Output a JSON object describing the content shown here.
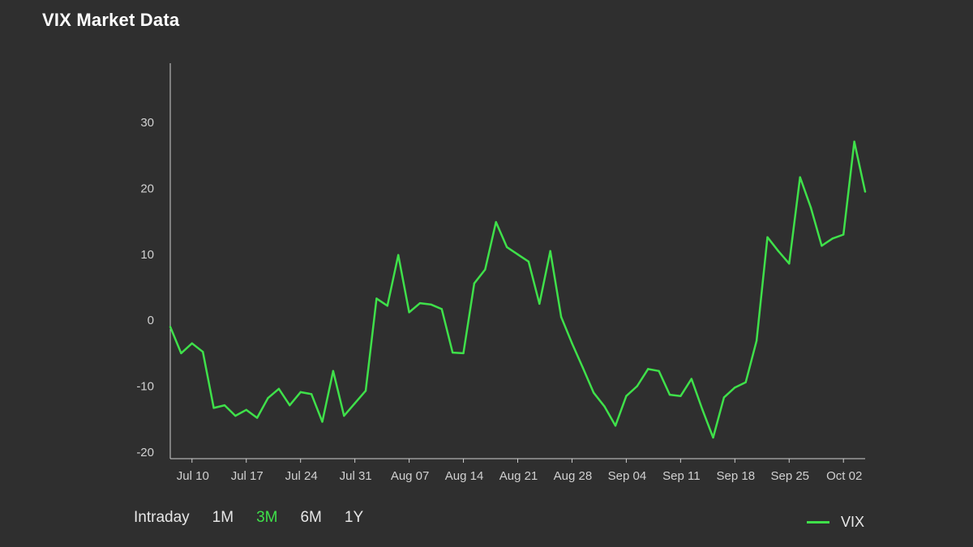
{
  "header": {
    "title": "VIX Market Data"
  },
  "range_selector": {
    "options": [
      "Intraday",
      "1M",
      "3M",
      "6M",
      "1Y"
    ],
    "selected": "3M"
  },
  "colors": {
    "series": "#3fe04a",
    "axis": "#cfcfcf",
    "background": "#2f2f2f"
  },
  "chart_data": {
    "type": "line",
    "title": "VIX Market Data",
    "xlabel": "",
    "ylabel": "",
    "ylim": [
      -21,
      39
    ],
    "yticks": [
      -20,
      -10,
      0,
      10,
      20,
      30
    ],
    "xticks": [
      "Jul 10",
      "Jul 17",
      "Jul 24",
      "Jul 31",
      "Aug 07",
      "Aug 14",
      "Aug 21",
      "Aug 28",
      "Sep 04",
      "Sep 11",
      "Sep 18",
      "Sep 25",
      "Oct 02"
    ],
    "legend": {
      "position": "bottom-right",
      "entries": [
        "VIX"
      ]
    },
    "grid": false,
    "series": [
      {
        "name": "VIX",
        "values": [
          -1.0,
          -5.0,
          -3.5,
          -4.8,
          -13.3,
          -12.9,
          -14.5,
          -13.6,
          -14.8,
          -11.8,
          -10.4,
          -12.9,
          -10.9,
          -11.2,
          -15.4,
          -7.7,
          -14.5,
          -12.6,
          -10.7,
          3.3,
          2.2,
          9.9,
          1.2,
          2.6,
          2.4,
          1.7,
          -4.9,
          -5.0,
          5.6,
          7.7,
          14.9,
          11.1,
          10.0,
          8.9,
          2.5,
          10.5,
          0.5,
          -3.5,
          -7.2,
          -11.0,
          -13.1,
          -16.0,
          -11.5,
          -10.0,
          -7.4,
          -7.7,
          -11.3,
          -11.5,
          -8.9,
          -13.5,
          -17.8,
          -11.7,
          -10.2,
          -9.4,
          -3.1,
          12.6,
          10.5,
          8.6,
          21.7,
          17.1,
          11.3,
          12.4,
          13.0,
          27.1,
          19.5
        ]
      }
    ]
  }
}
